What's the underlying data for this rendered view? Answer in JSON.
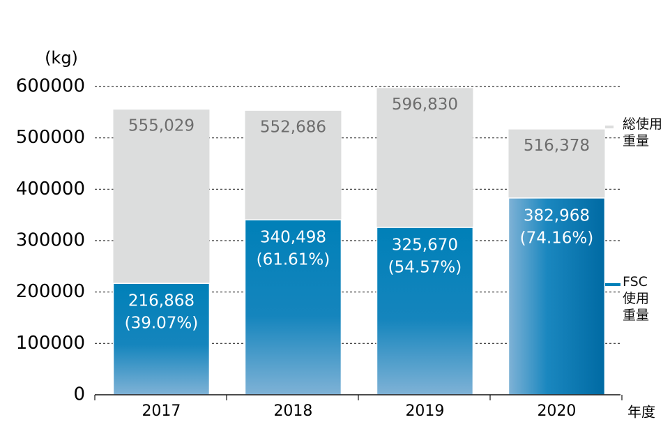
{
  "chart_data": {
    "type": "bar",
    "overlap": true,
    "y_label": "(kg)",
    "x_label": "年度",
    "categories": [
      "2017",
      "2018",
      "2019",
      "2020"
    ],
    "series": [
      {
        "name": "総使用重量",
        "color": "#dcdddd",
        "values": [
          555029,
          552686,
          596830,
          516378
        ],
        "value_labels": [
          "555,029",
          "552,686",
          "596,830",
          "516,378"
        ]
      },
      {
        "name": "FSC使用重量",
        "color": "#0080b8",
        "values": [
          216868,
          340498,
          325670,
          382968
        ],
        "value_labels": [
          "216,868",
          "340,498",
          "325,670",
          "382,968"
        ],
        "shares": [
          39.07,
          61.61,
          54.57,
          74.16
        ],
        "share_labels": [
          "(39.07%)",
          "(61.61%)",
          "(54.57%)",
          "(74.16%)"
        ]
      }
    ],
    "ylim": [
      0,
      600000
    ],
    "yticks": [
      0,
      100000,
      200000,
      300000,
      400000,
      500000,
      600000
    ],
    "grid": true
  }
}
